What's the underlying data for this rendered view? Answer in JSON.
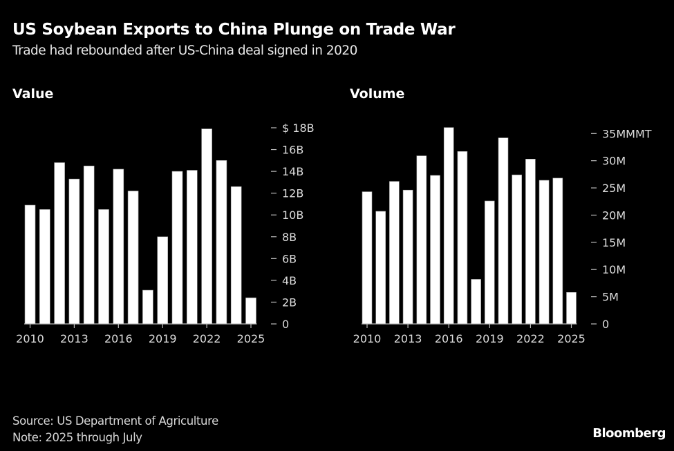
{
  "header": {
    "title": "US Soybean Exports to China Plunge on Trade War",
    "subtitle": "Trade had rebounded after US-China deal signed in 2020"
  },
  "footer": {
    "source": "Source: US Department of Agriculture",
    "note": "Note: 2025 through July",
    "brand": "Bloomberg"
  },
  "colors": {
    "background": "#000000",
    "bar": "#ffffff",
    "text": "#dcdcdc"
  },
  "chart_data": [
    {
      "type": "bar",
      "title": "Value",
      "xlabel": "",
      "ylabel": "",
      "categories": [
        "2010",
        "2011",
        "2012",
        "2013",
        "2014",
        "2015",
        "2016",
        "2017",
        "2018",
        "2019",
        "2020",
        "2021",
        "2022",
        "2023",
        "2024",
        "2025"
      ],
      "values": [
        10.9,
        10.5,
        14.8,
        13.3,
        14.5,
        10.5,
        14.2,
        12.2,
        3.1,
        8.0,
        14.0,
        14.1,
        17.9,
        15.0,
        12.6,
        2.4
      ],
      "unit": "billion USD",
      "ylim": [
        0,
        18
      ],
      "yticks": [
        0,
        2,
        4,
        6,
        8,
        10,
        12,
        14,
        16,
        18
      ],
      "ytick_labels": [
        "0",
        "2B",
        "4B",
        "6B",
        "8B",
        "10B",
        "12B",
        "14B",
        "16B",
        "$ 18B"
      ],
      "xticks": [
        "2010",
        "2013",
        "2016",
        "2019",
        "2022",
        "2025"
      ],
      "y_axis_side": "right",
      "grid": false,
      "legend": "none"
    },
    {
      "type": "bar",
      "title": "Volume",
      "xlabel": "",
      "ylabel": "",
      "categories": [
        "2010",
        "2011",
        "2012",
        "2013",
        "2014",
        "2015",
        "2016",
        "2017",
        "2018",
        "2019",
        "2020",
        "2021",
        "2022",
        "2023",
        "2024",
        "2025"
      ],
      "values": [
        24.3,
        20.7,
        26.2,
        24.6,
        30.9,
        27.3,
        36.1,
        31.7,
        8.2,
        22.6,
        34.2,
        27.4,
        30.3,
        26.4,
        26.8,
        5.8
      ],
      "unit": "million metric tons",
      "ylim": [
        0,
        35
      ],
      "yticks": [
        0,
        5,
        10,
        15,
        20,
        25,
        30,
        35
      ],
      "ytick_labels": [
        "0",
        "5M",
        "10M",
        "15M",
        "20M",
        "25M",
        "30M",
        "35MMMT"
      ],
      "xticks": [
        "2010",
        "2013",
        "2016",
        "2019",
        "2022",
        "2025"
      ],
      "y_axis_side": "right",
      "grid": false,
      "legend": "none"
    }
  ]
}
